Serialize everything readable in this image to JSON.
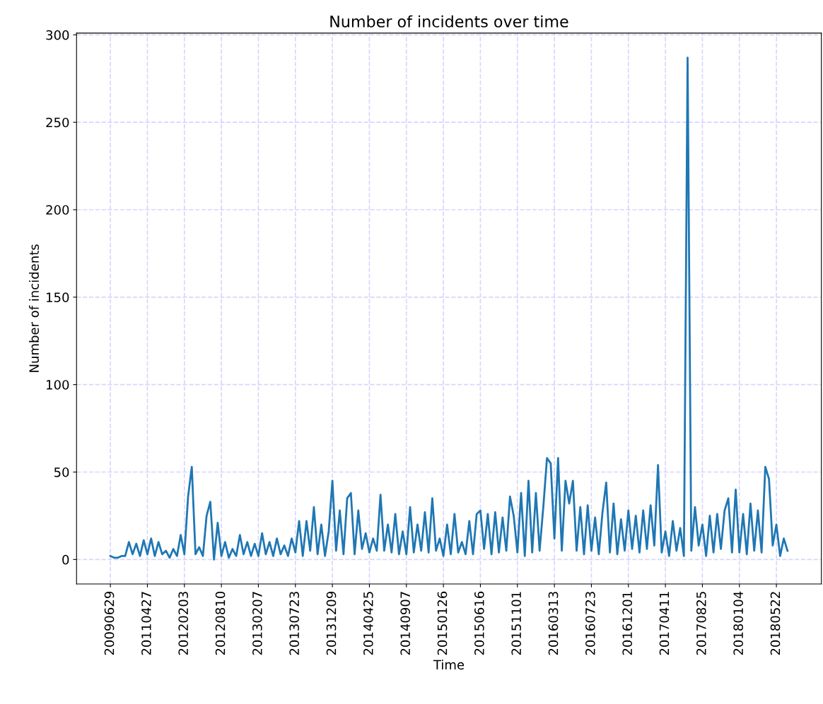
{
  "chart_data": {
    "type": "line",
    "title": "Number of incidents over time",
    "xlabel": "Time",
    "ylabel": "Number of incidents",
    "categories": [
      "20090629",
      null,
      null,
      null,
      null,
      null,
      null,
      null,
      null,
      null,
      "20110427",
      null,
      null,
      null,
      null,
      null,
      null,
      null,
      null,
      null,
      "20120203",
      null,
      null,
      null,
      null,
      null,
      null,
      null,
      null,
      null,
      "20120810",
      null,
      null,
      null,
      null,
      null,
      null,
      null,
      null,
      null,
      "20130207",
      null,
      null,
      null,
      null,
      null,
      null,
      null,
      null,
      null,
      "20130723",
      null,
      null,
      null,
      null,
      null,
      null,
      null,
      null,
      null,
      "20131209",
      null,
      null,
      null,
      null,
      null,
      null,
      null,
      null,
      null,
      "20140425",
      null,
      null,
      null,
      null,
      null,
      null,
      null,
      null,
      null,
      "20140907",
      null,
      null,
      null,
      null,
      null,
      null,
      null,
      null,
      null,
      "20150126",
      null,
      null,
      null,
      null,
      null,
      null,
      null,
      null,
      null,
      "20150616",
      null,
      null,
      null,
      null,
      null,
      null,
      null,
      null,
      null,
      "20151101",
      null,
      null,
      null,
      null,
      null,
      null,
      null,
      null,
      null,
      "20160313",
      null,
      null,
      null,
      null,
      null,
      null,
      null,
      null,
      null,
      "20160723",
      null,
      null,
      null,
      null,
      null,
      null,
      null,
      null,
      null,
      "20161201",
      null,
      null,
      null,
      null,
      null,
      null,
      null,
      null,
      null,
      "20170411",
      null,
      null,
      null,
      null,
      null,
      null,
      null,
      null,
      null,
      "20170825",
      null,
      null,
      null,
      null,
      null,
      null,
      null,
      null,
      null,
      "20180104",
      null,
      null,
      null,
      null,
      null,
      null,
      null,
      null,
      null,
      "20180522",
      null,
      null,
      null
    ],
    "series": [
      {
        "color": "#1f77b4",
        "values": [
          2,
          1,
          1,
          2,
          2,
          10,
          3,
          9,
          2,
          11,
          3,
          12,
          2,
          10,
          3,
          5,
          1,
          6,
          2,
          14,
          3,
          36,
          53,
          3,
          7,
          2,
          25,
          33,
          0,
          21,
          2,
          10,
          1,
          6,
          2,
          14,
          3,
          10,
          2,
          9,
          2,
          15,
          3,
          10,
          2,
          12,
          3,
          8,
          2,
          12,
          4,
          22,
          2,
          22,
          5,
          30,
          3,
          20,
          2,
          16,
          45,
          5,
          28,
          3,
          35,
          38,
          3,
          28,
          6,
          15,
          4,
          12,
          5,
          37,
          5,
          20,
          4,
          26,
          3,
          16,
          3,
          30,
          4,
          20,
          5,
          27,
          4,
          35,
          5,
          12,
          2,
          20,
          3,
          26,
          4,
          10,
          3,
          22,
          3,
          26,
          28,
          6,
          26,
          3,
          27,
          4,
          24,
          5,
          36,
          25,
          4,
          38,
          2,
          45,
          4,
          38,
          5,
          30,
          58,
          55,
          12,
          58,
          5,
          45,
          32,
          45,
          5,
          30,
          3,
          31,
          5,
          24,
          3,
          27,
          44,
          4,
          32,
          3,
          23,
          5,
          28,
          6,
          25,
          4,
          28,
          6,
          31,
          8,
          54,
          4,
          16,
          2,
          22,
          5,
          18,
          2,
          287,
          5,
          30,
          8,
          20,
          2,
          25,
          4,
          26,
          6,
          28,
          35,
          4,
          40,
          4,
          26,
          3,
          32,
          5,
          28,
          4,
          53,
          46,
          8,
          20,
          2,
          12,
          5
        ]
      }
    ],
    "ylim": [
      -14,
      301
    ],
    "yticks": [
      0,
      50,
      100,
      150,
      200,
      250,
      300
    ],
    "grid": true,
    "marker": "none",
    "line_style": "solid"
  }
}
